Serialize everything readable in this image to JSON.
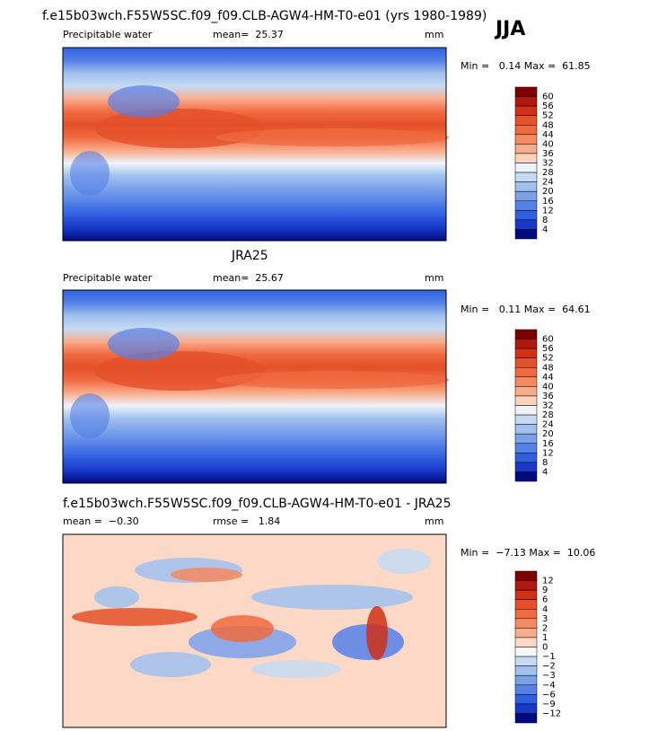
{
  "header": {
    "title": "f.e15b03wch.F55W5SC.f09_f09.CLB-AGW4-HM-T0-e01 (yrs 1980-1989)",
    "season": "JJA"
  },
  "panels": [
    {
      "left": "Precipitable water",
      "center": "mean=  25.37",
      "right": "mm",
      "stats": "Min =   0.14 Max =  61.85",
      "colorbar": {
        "labels": [
          "60",
          "56",
          "52",
          "48",
          "44",
          "40",
          "36",
          "32",
          "28",
          "24",
          "20",
          "16",
          "12",
          "8",
          "4"
        ],
        "colors": [
          "#800000",
          "#b0190f",
          "#d03018",
          "#e4502a",
          "#f06a40",
          "#f68a62",
          "#f9ac8c",
          "#fcd2bc",
          "#eef3fb",
          "#c6dbf3",
          "#a0c0ee",
          "#7aa0ea",
          "#5580e8",
          "#3060e0",
          "#1838c8",
          "#000a80"
        ]
      }
    },
    {
      "title": "JRA25",
      "left": "Precipitable water",
      "center": "mean=  25.67",
      "right": "mm",
      "stats": "Min =   0.11 Max =  64.61",
      "colorbar": {
        "labels": [
          "60",
          "56",
          "52",
          "48",
          "44",
          "40",
          "36",
          "32",
          "28",
          "24",
          "20",
          "16",
          "12",
          "8",
          "4"
        ],
        "colors": [
          "#800000",
          "#b0190f",
          "#d03018",
          "#e4502a",
          "#f06a40",
          "#f68a62",
          "#f9ac8c",
          "#fcd2bc",
          "#eef3fb",
          "#c6dbf3",
          "#a0c0ee",
          "#7aa0ea",
          "#5580e8",
          "#3060e0",
          "#1838c8",
          "#000a80"
        ]
      }
    },
    {
      "title": "f.e15b03wch.F55W5SC.f09_f09.CLB-AGW4-HM-T0-e01 - JRA25",
      "left": "mean =  −0.30",
      "center": "rmse =   1.84",
      "right": "mm",
      "stats": "Min =  −7.13 Max =  10.06",
      "colorbar": {
        "labels": [
          "12",
          "9",
          "6",
          "4",
          "3",
          "2",
          "1",
          "0",
          "−1",
          "−2",
          "−3",
          "−4",
          "−6",
          "−9",
          "−12"
        ],
        "colors": [
          "#800000",
          "#b0190f",
          "#d03018",
          "#e4502a",
          "#f06a40",
          "#f68a62",
          "#f9ac8c",
          "#fcd9c6",
          "#f4f7fc",
          "#c6dbf3",
          "#a0c0ee",
          "#7aa0ea",
          "#5580e8",
          "#3060e0",
          "#1838c8",
          "#000a80"
        ]
      }
    }
  ]
}
